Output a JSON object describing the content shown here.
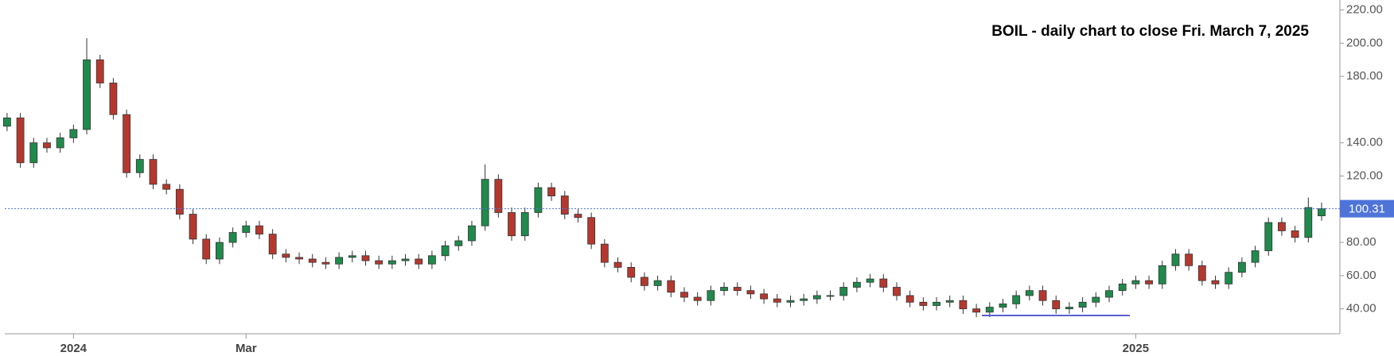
{
  "chart_data": {
    "type": "candlestick",
    "title": "BOIL - daily chart to close Fri. March 7, 2025",
    "categories": [
      null,
      null,
      null,
      null,
      null,
      "2024",
      null,
      null,
      null,
      null,
      null,
      null,
      null,
      null,
      null,
      null,
      null,
      null,
      "Mar",
      null,
      null,
      null,
      null,
      null,
      null,
      null,
      null,
      null,
      null,
      null,
      null,
      null,
      null,
      null,
      null,
      null,
      null,
      null,
      null,
      null,
      null,
      null,
      null,
      null,
      null,
      null,
      null,
      null,
      null,
      null,
      null,
      null,
      null,
      null,
      null,
      null,
      null,
      null,
      null,
      null,
      null,
      null,
      null,
      null,
      null,
      null,
      null,
      null,
      null,
      null,
      null,
      null,
      null,
      null,
      null,
      null,
      null,
      null,
      null,
      null,
      null,
      null,
      null,
      null,
      null,
      "2025",
      null,
      null,
      null,
      null,
      null,
      null,
      null,
      null,
      null,
      null,
      null,
      null,
      null,
      null
    ],
    "open": [
      150,
      155,
      128,
      140,
      137,
      143,
      148,
      190,
      176,
      157,
      122,
      130,
      115,
      112,
      97,
      82,
      70,
      80,
      86,
      90,
      85,
      73,
      71,
      70,
      68,
      67,
      71,
      72,
      69,
      67,
      69,
      70,
      67,
      72,
      78,
      81,
      90,
      118,
      98,
      84,
      98,
      113,
      108,
      97,
      95,
      79,
      68,
      65,
      59,
      54,
      57,
      50,
      47,
      45,
      51,
      53,
      51,
      49,
      46,
      44,
      45,
      46,
      48,
      48,
      53,
      56,
      58,
      53,
      48,
      44,
      42,
      44,
      45,
      40,
      38,
      41,
      43,
      48,
      51,
      45,
      40,
      41,
      44,
      47,
      51,
      55,
      57,
      55,
      66,
      73,
      66,
      57,
      55,
      62,
      68,
      75,
      92,
      87,
      83,
      96
    ],
    "high": [
      158,
      158,
      143,
      143,
      146,
      151,
      203,
      193,
      179,
      160,
      133,
      133,
      118,
      115,
      100,
      85,
      83,
      89,
      93,
      93,
      88,
      76,
      74,
      73,
      71,
      74,
      75,
      75,
      72,
      72,
      73,
      73,
      75,
      81,
      84,
      93,
      127,
      121,
      101,
      101,
      116,
      116,
      111,
      100,
      98,
      82,
      71,
      68,
      62,
      60,
      60,
      53,
      50,
      54,
      56,
      56,
      54,
      52,
      49,
      48,
      49,
      51,
      51,
      56,
      59,
      61,
      61,
      56,
      51,
      47,
      47,
      48,
      48,
      43,
      44,
      46,
      51,
      54,
      54,
      48,
      44,
      47,
      50,
      54,
      58,
      60,
      60,
      69,
      76,
      76,
      69,
      60,
      65,
      71,
      78,
      95,
      95,
      90,
      107,
      104
    ],
    "low": [
      147,
      125,
      125,
      134,
      134,
      140,
      145,
      173,
      154,
      119,
      119,
      112,
      109,
      94,
      79,
      67,
      67,
      77,
      83,
      82,
      70,
      68,
      67,
      65,
      64,
      64,
      68,
      66,
      64,
      64,
      66,
      64,
      64,
      69,
      75,
      78,
      87,
      95,
      81,
      81,
      95,
      105,
      94,
      92,
      76,
      65,
      62,
      56,
      51,
      51,
      47,
      44,
      42,
      42,
      48,
      48,
      46,
      43,
      41,
      41,
      42,
      43,
      45,
      45,
      50,
      53,
      50,
      45,
      41,
      39,
      39,
      41,
      37,
      35,
      35,
      38,
      40,
      45,
      42,
      37,
      37,
      38,
      41,
      44,
      48,
      52,
      52,
      52,
      63,
      63,
      54,
      52,
      52,
      59,
      65,
      72,
      84,
      80,
      80,
      93
    ],
    "close": [
      155,
      128,
      140,
      137,
      143,
      148,
      190,
      176,
      157,
      122,
      130,
      115,
      112,
      97,
      82,
      70,
      80,
      86,
      90,
      85,
      73,
      71,
      70,
      68,
      67,
      71,
      72,
      69,
      67,
      69,
      70,
      67,
      72,
      78,
      81,
      90,
      118,
      98,
      84,
      98,
      113,
      108,
      97,
      95,
      79,
      68,
      65,
      59,
      54,
      57,
      50,
      47,
      45,
      51,
      53,
      51,
      49,
      46,
      44,
      45,
      46,
      48,
      48,
      53,
      56,
      58,
      53,
      48,
      44,
      42,
      44,
      45,
      40,
      38,
      41,
      43,
      48,
      51,
      45,
      40,
      41,
      44,
      47,
      51,
      55,
      57,
      55,
      66,
      73,
      66,
      57,
      55,
      62,
      68,
      75,
      92,
      87,
      83,
      101,
      100.31
    ],
    "up_color": "#1f8a4c",
    "down_color": "#b5382f",
    "price_line_color": "#4f74d9",
    "support_level": 36,
    "support_color": "#5a5fd0",
    "ylim": [
      25,
      226
    ],
    "yticks": [
      {
        "value": 40,
        "label": "40.00"
      },
      {
        "value": 60,
        "label": "60.00"
      },
      {
        "value": 80,
        "label": "80.00"
      },
      {
        "value": 120,
        "label": "120.00"
      },
      {
        "value": 140,
        "label": "140.00"
      },
      {
        "value": 180,
        "label": "180.00"
      },
      {
        "value": 200,
        "label": "200.00"
      },
      {
        "value": 220,
        "label": "220.00"
      }
    ]
  }
}
